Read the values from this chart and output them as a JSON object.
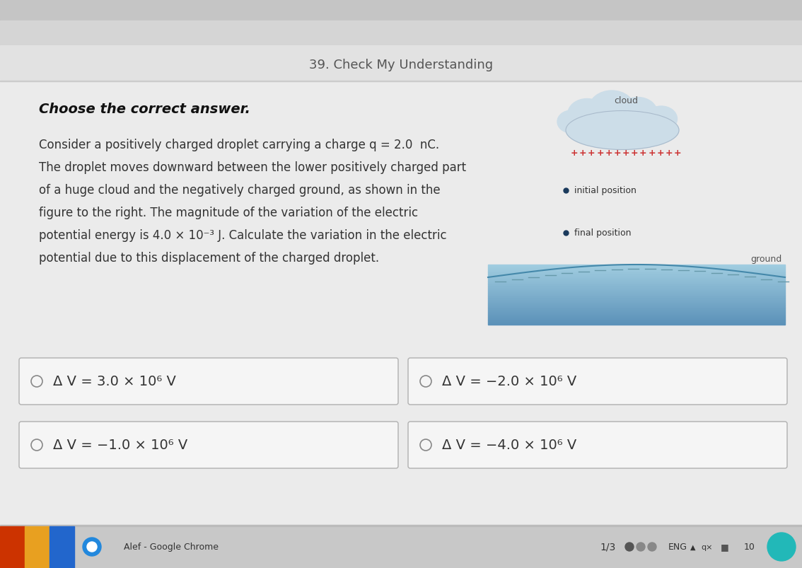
{
  "title": "39. Check My Understanding",
  "subtitle": "Choose the correct answer.",
  "problem_text_lines": [
    "Consider a positively charged droplet carrying a charge q = 2.0  nC.",
    "The droplet moves downward between the lower positively charged part",
    "of a huge cloud and the negatively charged ground, as shown in the",
    "figure to the right. The magnitude of the variation of the electric",
    "potential energy is 4.0 × 10⁻³ J. Calculate the variation in the electric",
    "potential due to this displacement of the charged droplet."
  ],
  "answers": [
    "Δ V = 3.0 × 10⁶ V",
    "Δ V = −2.0 × 10⁶ V",
    "Δ V = −1.0 × 10⁶ V",
    "Δ V = −4.0 × 10⁶ V"
  ],
  "bg_outer": "#c8c8c8",
  "bg_chrome_bar": "#d8d8d8",
  "bg_content": "#e6e6e6",
  "bg_title_area": "#e0e0e0",
  "box_bg": "#f2f2f2",
  "box_border": "#b0b0b0",
  "title_color": "#555555",
  "text_color": "#333333",
  "cloud_fill": "#ccdde8",
  "cloud_border": "#aabbcc",
  "ground_top": "#a0cce0",
  "ground_bot": "#6699bb",
  "plus_color": "#cc3333",
  "dot_color": "#1a3a5c",
  "dot_label_color": "#333333",
  "ground_label_color": "#555555",
  "footer_bg": "#2a2a2a",
  "taskbar_bg": "#d0d0d0",
  "page_indicator": "1/3"
}
